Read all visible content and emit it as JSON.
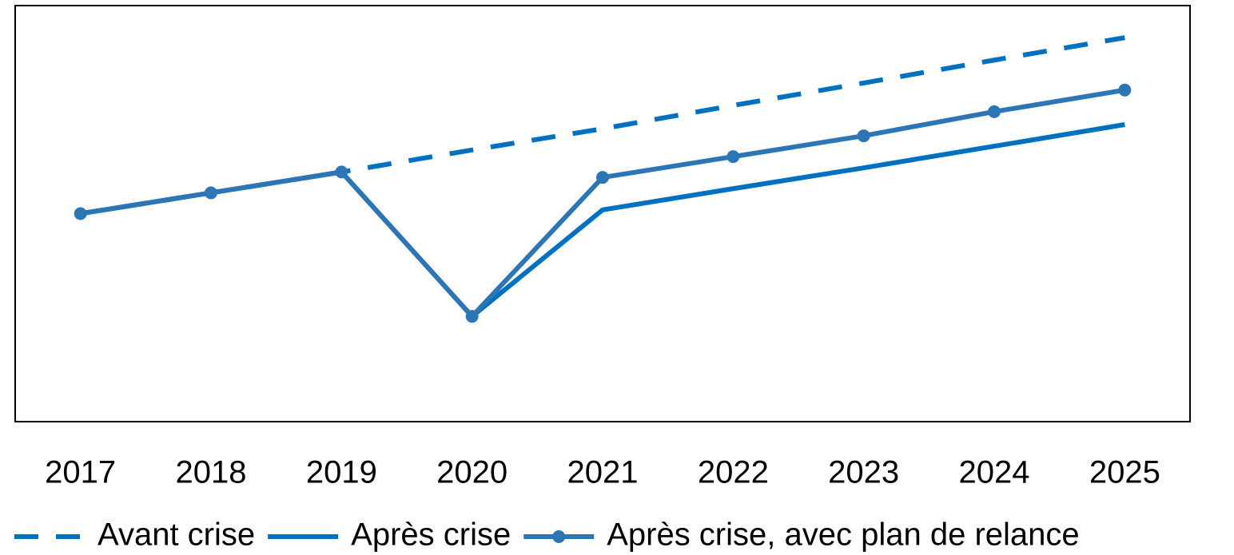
{
  "chart_data": {
    "type": "line",
    "categories": [
      "2017",
      "2018",
      "2019",
      "2020",
      "2021",
      "2022",
      "2023",
      "2024",
      "2025"
    ],
    "series": [
      {
        "name": "Avant crise",
        "color": "#0070c0",
        "line_style": "dashed",
        "marker": false,
        "values": [
          50,
          55,
          60,
          65.3,
          70.4,
          76,
          81.4,
          86.9,
          92.3
        ]
      },
      {
        "name": "Après crise",
        "color": "#0070c0",
        "line_style": "solid",
        "marker": false,
        "values": [
          50,
          55,
          60,
          25.3,
          50.9,
          56,
          61,
          66.2,
          71.4
        ]
      },
      {
        "name": "Après crise, avec plan de relance",
        "color": "#2e75b6",
        "line_style": "solid",
        "marker": true,
        "values": [
          50,
          55,
          60,
          25.3,
          58.7,
          63.7,
          68.7,
          74.5,
          79.7
        ]
      }
    ],
    "ylim": [
      0,
      100
    ],
    "legend": "bottom"
  }
}
